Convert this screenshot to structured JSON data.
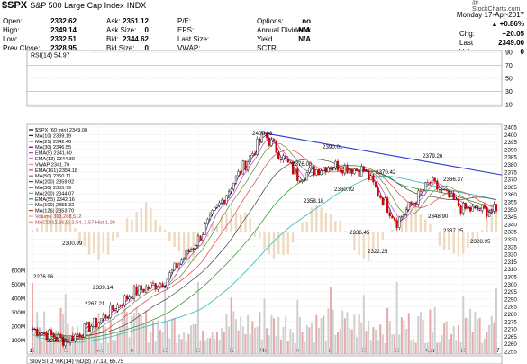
{
  "header": {
    "symbol": "$SPX",
    "name": "S&P 500 Large Cap Index",
    "exchange": "INDX",
    "brand": "@ StockCharts.com",
    "date": "Monday 17-Apr-2017"
  },
  "quotes_left": [
    {
      "label": "Open:",
      "value": "2332.62"
    },
    {
      "label": "High:",
      "value": "2349.14"
    },
    {
      "label": "Low:",
      "value": "2332.51"
    },
    {
      "label": "Prev Close:",
      "value": "2328.95"
    }
  ],
  "quotes_mid": [
    {
      "label": "Ask:",
      "value": "2351.12"
    },
    {
      "label": "Ask Size:",
      "value": "0"
    },
    {
      "label": "Bid:",
      "value": "2344.62"
    },
    {
      "label": "Bid Size:",
      "value": "0"
    }
  ],
  "quotes_pe": [
    {
      "label": "P/E:",
      "value": ""
    },
    {
      "label": "EPS:",
      "value": ""
    },
    {
      "label": "Last Size:",
      "value": ""
    },
    {
      "label": "VWAP:",
      "value": ""
    }
  ],
  "quotes_opt": [
    {
      "label": "Options:",
      "value": "no"
    },
    {
      "label": "Annual Dividend:",
      "value": "N/A"
    },
    {
      "label": "Yield",
      "value": "N/A"
    },
    {
      "label": "SCTR:",
      "value": ""
    }
  ],
  "quotes_right": [
    {
      "label": "Chg:",
      "value": "+20.05"
    },
    {
      "label": "Last",
      "value": "2349.00"
    },
    {
      "label": "Volume:",
      "value": "0"
    }
  ],
  "pct_change": "+0.86%",
  "rsi_panel": {
    "label": "RSI(14) 54.97",
    "ticks": [
      "90",
      "70",
      "50",
      "30",
      "10"
    ]
  },
  "price_panel": {
    "legend": [
      {
        "text": "$SPX (60 min) 2349.00",
        "color": "#000000"
      },
      {
        "text": "MA(10) 2339.19",
        "color": "#1b1b7a"
      },
      {
        "text": "MA(21) 2342.46",
        "color": "#b03030"
      },
      {
        "text": "MA(30) 2346.55",
        "color": "#2a2a2a"
      },
      {
        "text": "EMA(5) 2341.60",
        "color": "#c040c0"
      },
      {
        "text": "EMA(13) 2344.30",
        "color": "#a030a0"
      },
      {
        "text": "VWAP 2341.79",
        "color": "#e080e0"
      },
      {
        "text": "EMA(161) 2354.18",
        "color": "#e04040"
      },
      {
        "text": "MA(50) 2350.11",
        "color": "#5a8a2a"
      },
      {
        "text": "MA(200) 2359.92",
        "color": "#8a3030"
      },
      {
        "text": "MA(30) 2355.79",
        "color": "#202060"
      },
      {
        "text": "MA(200) 2344.07",
        "color": "#40c0c0"
      },
      {
        "text": "EMA(55) 2342.16",
        "color": "#30a030"
      },
      {
        "text": "MA(100) 2355.32",
        "color": "#404040"
      },
      {
        "text": "MA(126) 2353.70",
        "color": "#c03030"
      },
      {
        "text": "Volume 393,288,512",
        "color": "#e0a0a0"
      },
      {
        "text": "MACD(12,26,5) 2.54, 2.57 Hist 1.26",
        "color": "#e0a070"
      }
    ],
    "price_ticks": [
      "2405",
      "2400",
      "2395",
      "2390",
      "2385",
      "2380",
      "2375",
      "2370",
      "2365",
      "2360",
      "2355",
      "2350",
      "2345",
      "2340",
      "2335",
      "2330",
      "2325",
      "2320",
      "2315",
      "2310",
      "2305",
      "2300",
      "2295",
      "2290",
      "2285",
      "2280",
      "2275",
      "2270",
      "2265",
      "2260",
      "2255"
    ],
    "volume_ticks": [
      "600M",
      "500M",
      "400M",
      "300M",
      "200M",
      "100M"
    ],
    "annotations": [
      {
        "text": "2400.98"
      },
      {
        "text": "2390.01"
      },
      {
        "text": "2376.06"
      },
      {
        "text": "2379.26"
      },
      {
        "text": "2370.42"
      },
      {
        "text": "2366.37"
      },
      {
        "text": "2360.92"
      },
      {
        "text": "2358.18"
      },
      {
        "text": "2348.90"
      },
      {
        "text": "2336.45"
      },
      {
        "text": "2337.25"
      },
      {
        "text": "2322.25"
      },
      {
        "text": "2328.95"
      },
      {
        "text": "2300.99"
      },
      {
        "text": "2276.96"
      },
      {
        "text": "2339.14"
      },
      {
        "text": "2267.21"
      },
      {
        "text": "2257.02"
      }
    ]
  },
  "x_axis": [
    "17",
    "23",
    "Feb",
    "6",
    "13",
    "21",
    "27",
    "Mar",
    "6",
    "13",
    "20",
    "27",
    "Apr",
    "10",
    "17"
  ],
  "stoch_panel": {
    "label": "Slov STO %K(14) %D(3) 77.19, 65.75"
  },
  "chart_data": {
    "type": "line",
    "title": "$SPX (60 min)",
    "xlabel": "",
    "ylabel": "",
    "ylim": [
      2255,
      2405
    ],
    "x": [
      "Jan 17",
      "Jan 23",
      "Feb 1",
      "Feb 6",
      "Feb 13",
      "Feb 21",
      "Feb 27",
      "Mar 1",
      "Mar 6",
      "Mar 13",
      "Mar 20",
      "Mar 27",
      "Apr 3",
      "Apr 10",
      "Apr 17"
    ],
    "series": [
      {
        "name": "$SPX (60 min)",
        "values": [
          2270,
          2262,
          2275,
          2294,
          2302,
          2330,
          2366,
          2400,
          2372,
          2380,
          2376,
          2342,
          2368,
          2350,
          2349
        ]
      }
    ],
    "trendline": {
      "from": {
        "x": "Mar 1",
        "y": 2400.98
      },
      "to": {
        "x": "Apr 17",
        "y": 2373
      }
    },
    "rsi": {
      "ylim": [
        10,
        90
      ],
      "last": 54.97
    },
    "volume_ylim_millions": [
      0,
      600
    ]
  }
}
